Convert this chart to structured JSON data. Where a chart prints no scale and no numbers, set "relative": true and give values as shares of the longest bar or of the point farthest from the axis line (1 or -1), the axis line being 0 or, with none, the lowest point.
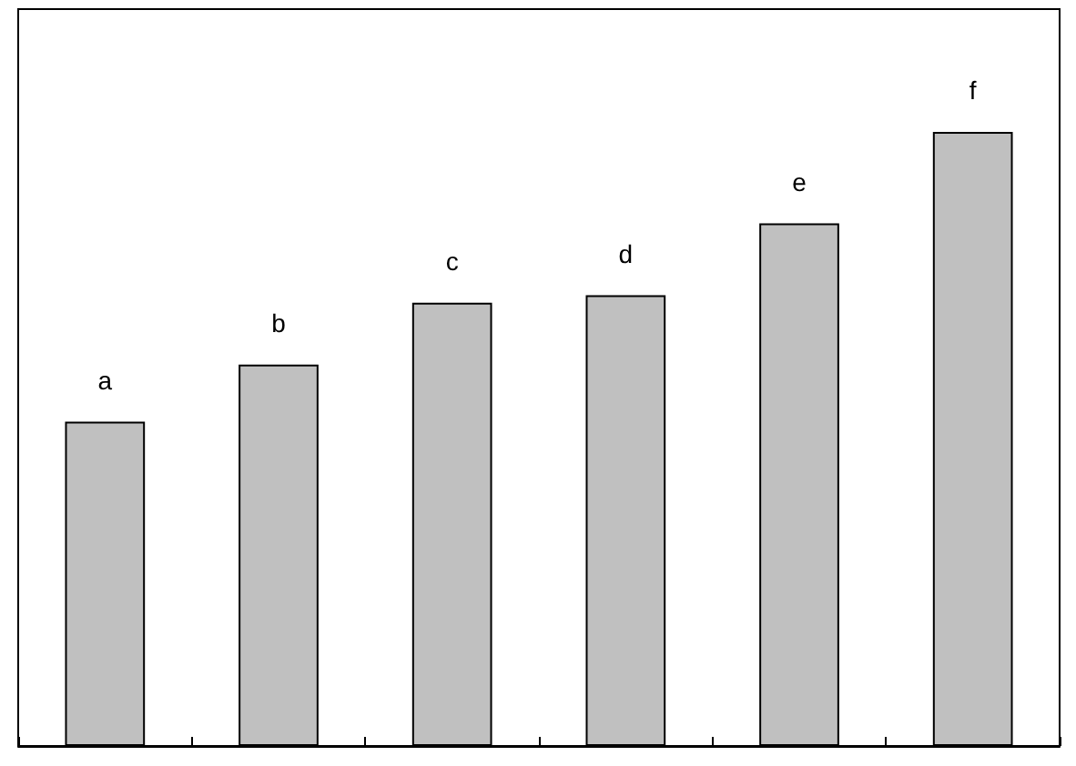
{
  "chart_data": {
    "type": "bar",
    "relative": true,
    "categories": [
      null,
      null,
      null,
      null,
      null,
      null
    ],
    "values": [
      0.528,
      0.621,
      0.722,
      0.734,
      0.851,
      1
    ],
    "annotations": [
      "a",
      "b",
      "c",
      "d",
      "e",
      "f"
    ],
    "color": "#c0c0c0"
  }
}
